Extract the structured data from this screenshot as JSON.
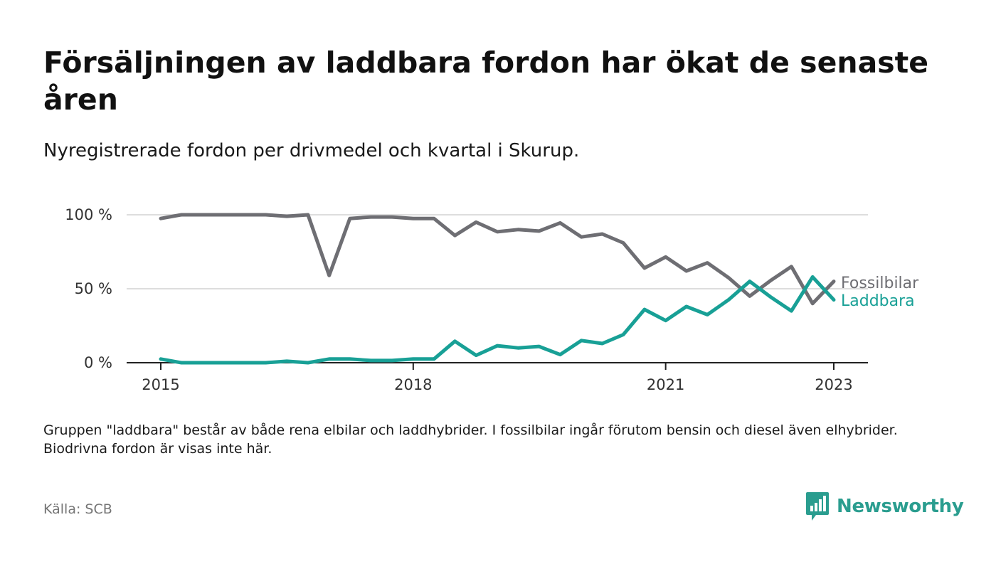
{
  "header": {
    "title": "Försäljningen av laddbara fordon har ökat de senaste åren",
    "subtitle": "Nyregistrerade fordon per drivmedel och kvartal i Skurup."
  },
  "footer": {
    "note": "Gruppen \"laddbara\" består av både rena elbilar och laddhybrider. I fossilbilar ingår förutom bensin och diesel även elhybrider. Biodrivna fordon är visas inte här.",
    "source": "Källa: SCB",
    "logo_text": "Newsworthy"
  },
  "colors": {
    "fossil": "#6e6e73",
    "laddbara": "#18a096",
    "gridline": "#dddddd",
    "axis": "#222222",
    "brand": "#2a9d8f"
  },
  "chart_data": {
    "type": "line",
    "x_unit": "quarter start",
    "x_ticks": [
      {
        "label": "2015",
        "x": "2015-01-01"
      },
      {
        "label": "2018",
        "x": "2018-01-01"
      },
      {
        "label": "2021",
        "x": "2021-01-01"
      },
      {
        "label": "2023",
        "x": "2023-01-01"
      }
    ],
    "y_ticks": [
      {
        "label": "0 %",
        "value": 0
      },
      {
        "label": "50 %",
        "value": 50
      },
      {
        "label": "100 %",
        "value": 100
      }
    ],
    "ylim": [
      0,
      100
    ],
    "grid": true,
    "legend": "direct labels at line ends",
    "x": [
      "2015-01-01",
      "2015-04-01",
      "2015-07-01",
      "2015-10-01",
      "2016-01-01",
      "2016-04-01",
      "2016-07-01",
      "2016-10-01",
      "2017-01-01",
      "2017-04-01",
      "2017-07-01",
      "2017-10-01",
      "2018-01-01",
      "2018-04-01",
      "2018-07-01",
      "2018-10-01",
      "2019-01-01",
      "2019-04-01",
      "2019-07-01",
      "2019-10-01",
      "2020-01-01",
      "2020-04-01",
      "2020-07-01",
      "2020-10-01",
      "2021-01-01",
      "2021-04-01",
      "2021-07-01",
      "2021-10-01",
      "2022-01-01",
      "2022-04-01",
      "2022-07-01",
      "2022-10-01",
      "2023-01-01"
    ],
    "series": [
      {
        "name": "Fossilbilar",
        "color_key": "fossil",
        "values": [
          97.5,
          100,
          100,
          100,
          100,
          100,
          99,
          100,
          59,
          97.5,
          98.5,
          98.5,
          97.5,
          97.5,
          86,
          95,
          88.5,
          90,
          89,
          94.5,
          85,
          87,
          81,
          64,
          71.5,
          62,
          67.5,
          57.5,
          45,
          55.5,
          65,
          40,
          55
        ]
      },
      {
        "name": "Laddbara",
        "color_key": "laddbara",
        "values": [
          2.5,
          0,
          0,
          0,
          0,
          0,
          1,
          0,
          2.5,
          2.5,
          1.5,
          1.5,
          2.5,
          2.5,
          14.5,
          5,
          11.5,
          10,
          11,
          5.5,
          15,
          13,
          19,
          36,
          28.5,
          38,
          32.5,
          42.5,
          55,
          44.5,
          35,
          58,
          42.5
        ]
      }
    ]
  }
}
